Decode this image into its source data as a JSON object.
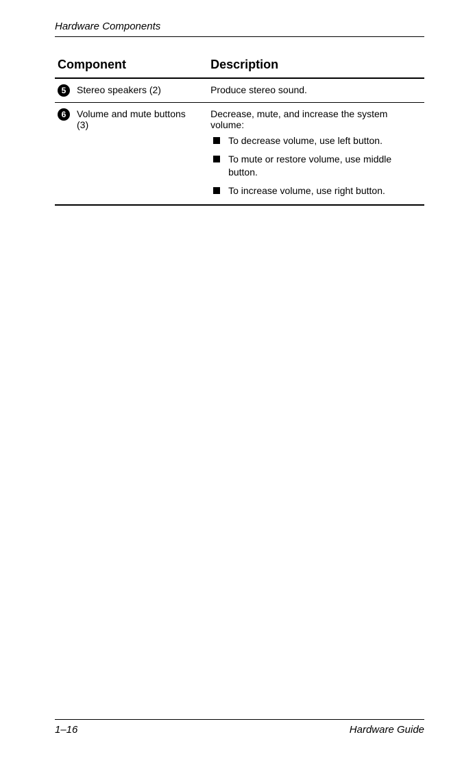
{
  "header": {
    "title": "Hardware Components"
  },
  "table": {
    "col_component": "Component",
    "col_description": "Description",
    "rows": [
      {
        "marker": "5",
        "name": "Stereo speakers (2)",
        "desc_intro": "Produce stereo sound.",
        "bullets": []
      },
      {
        "marker": "6",
        "name": "Volume and mute buttons (3)",
        "desc_intro": "Decrease, mute, and increase the system volume:",
        "bullets": [
          "To decrease volume, use left button.",
          "To mute or restore volume, use middle button.",
          "To increase volume, use right button."
        ]
      }
    ]
  },
  "footer": {
    "page": "1–16",
    "doc": "Hardware Guide"
  }
}
